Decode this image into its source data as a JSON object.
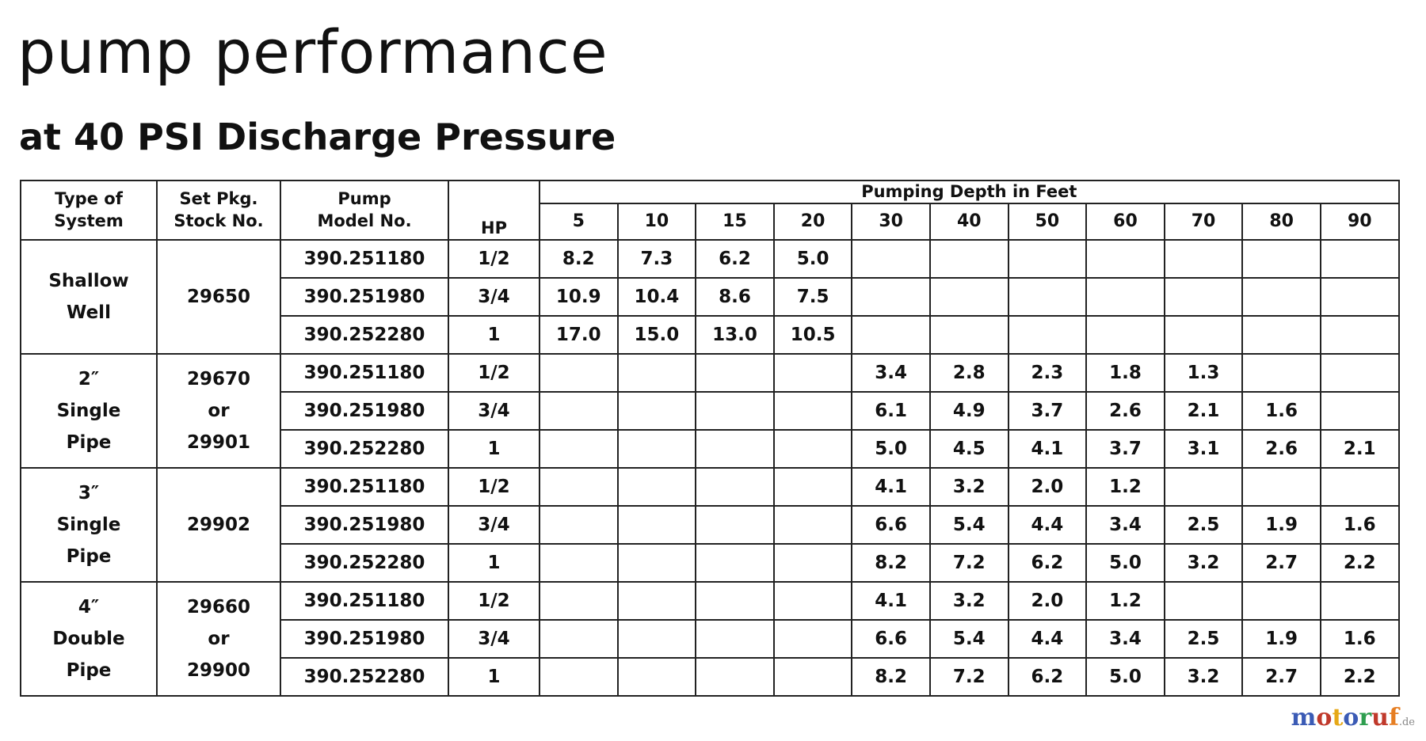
{
  "header": {
    "title": "pump performance",
    "subtitle": "at 40 PSI Discharge Pressure"
  },
  "table": {
    "columns": [
      "Type of\nSystem",
      "Set Pkg.\nStock No.",
      "Pump\nModel No.",
      "HP"
    ],
    "depth_header": "Pumping Depth in Feet",
    "depths": [
      "5",
      "10",
      "15",
      "20",
      "30",
      "40",
      "50",
      "60",
      "70",
      "80",
      "90"
    ],
    "groups": [
      {
        "system": [
          "Shallow",
          "Well"
        ],
        "stock": [
          "29650"
        ],
        "rows": [
          {
            "model": "390.251180",
            "hp": "1/2",
            "values": [
              "8.2",
              "7.3",
              "6.2",
              "5.0",
              null,
              null,
              null,
              null,
              null,
              null,
              null
            ]
          },
          {
            "model": "390.251980",
            "hp": "3/4",
            "values": [
              "10.9",
              "10.4",
              "8.6",
              "7.5",
              null,
              null,
              null,
              null,
              null,
              null,
              null
            ]
          },
          {
            "model": "390.252280",
            "hp": "1",
            "values": [
              "17.0",
              "15.0",
              "13.0",
              "10.5",
              null,
              null,
              null,
              null,
              null,
              null,
              null
            ]
          }
        ]
      },
      {
        "system": [
          "2″",
          "Single",
          "Pipe"
        ],
        "stock": [
          "29670",
          "or",
          "29901"
        ],
        "rows": [
          {
            "model": "390.251180",
            "hp": "1/2",
            "values": [
              null,
              null,
              null,
              null,
              "3.4",
              "2.8",
              "2.3",
              "1.8",
              "1.3",
              null,
              null
            ]
          },
          {
            "model": "390.251980",
            "hp": "3/4",
            "values": [
              null,
              null,
              null,
              null,
              "6.1",
              "4.9",
              "3.7",
              "2.6",
              "2.1",
              "1.6",
              null
            ]
          },
          {
            "model": "390.252280",
            "hp": "1",
            "values": [
              null,
              null,
              null,
              null,
              "5.0",
              "4.5",
              "4.1",
              "3.7",
              "3.1",
              "2.6",
              "2.1"
            ]
          }
        ]
      },
      {
        "system": [
          "3″",
          "Single",
          "Pipe"
        ],
        "stock": [
          "29902"
        ],
        "rows": [
          {
            "model": "390.251180",
            "hp": "1/2",
            "values": [
              null,
              null,
              null,
              null,
              "4.1",
              "3.2",
              "2.0",
              "1.2",
              null,
              null,
              null
            ]
          },
          {
            "model": "390.251980",
            "hp": "3/4",
            "values": [
              null,
              null,
              null,
              null,
              "6.6",
              "5.4",
              "4.4",
              "3.4",
              "2.5",
              "1.9",
              "1.6"
            ]
          },
          {
            "model": "390.252280",
            "hp": "1",
            "values": [
              null,
              null,
              null,
              null,
              "8.2",
              "7.2",
              "6.2",
              "5.0",
              "3.2",
              "2.7",
              "2.2"
            ]
          }
        ]
      },
      {
        "system": [
          "4″",
          "Double",
          "Pipe"
        ],
        "stock": [
          "29660",
          "or",
          "29900"
        ],
        "rows": [
          {
            "model": "390.251180",
            "hp": "1/2",
            "values": [
              null,
              null,
              null,
              null,
              "4.1",
              "3.2",
              "2.0",
              "1.2",
              null,
              null,
              null
            ]
          },
          {
            "model": "390.251980",
            "hp": "3/4",
            "values": [
              null,
              null,
              null,
              null,
              "6.6",
              "5.4",
              "4.4",
              "3.4",
              "2.5",
              "1.9",
              "1.6"
            ]
          },
          {
            "model": "390.252280",
            "hp": "1",
            "values": [
              null,
              null,
              null,
              null,
              "8.2",
              "7.2",
              "6.2",
              "5.0",
              "3.2",
              "2.7",
              "2.2"
            ]
          }
        ]
      }
    ]
  },
  "watermark": {
    "name": "motoruf",
    "suffix": ".de"
  }
}
